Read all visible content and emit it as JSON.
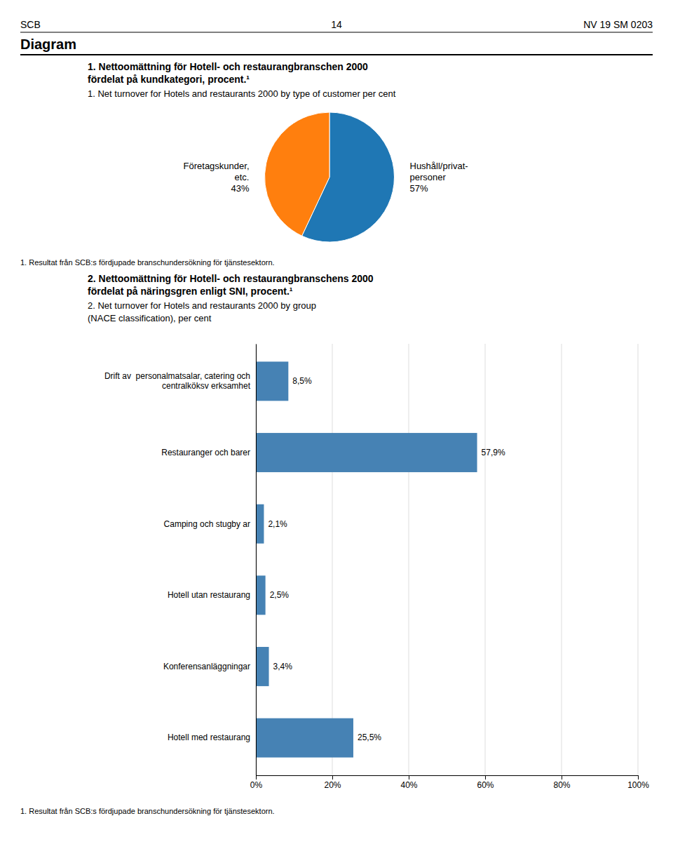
{
  "page_header": [
    "SCB",
    "14",
    "NV 19 SM 0203"
  ],
  "section_title": "Diagram",
  "chart_data": [
    {
      "type": "pie",
      "title": "1. Nettoomättning för Hotell- och restaurangbranschen 2000\nfördelat på kundkategori, procent.¹",
      "subtitle": "1. Net turnover for Hotels and restaurants 2000 by type of customer per cent",
      "categories": [
        "Hushåll/privat-\npersoner",
        "Företagskunder,\netc."
      ],
      "values": [
        57,
        43
      ],
      "value_labels": [
        "57%",
        "43%"
      ],
      "data_labels": true,
      "annotations": [
        "1. Resultat från SCB:s fördjupade branschundersökning för tjänstesektorn."
      ]
    },
    {
      "type": "bar",
      "orientation": "horizontal",
      "title": "2. Nettoomättning för Hotell- och restaurangbranschens 2000\nfördelat på näringsgren enligt SNI, procent.¹",
      "subtitle": "2. Net turnover for Hotels and restaurants 2000 by group\n(NACE classification), per cent",
      "categories": [
        "Drift av  personalmatsalar, catering och\ncentralköksv erksamhet",
        "Restauranger och barer",
        "Camping och stugby ar",
        "Hotell utan restaurang",
        "Konferensanläggningar",
        "Hotell med restaurang"
      ],
      "values": [
        8.5,
        57.9,
        2.1,
        2.5,
        3.4,
        25.5
      ],
      "value_labels": [
        "8,5%",
        "57,9%",
        "2,1%",
        "2,5%",
        "3,4%",
        "25,5%"
      ],
      "data_labels": true,
      "xlim": [
        0,
        100
      ],
      "xticks": [
        {
          "value": 0,
          "label": "0%"
        },
        {
          "value": 20,
          "label": "20%"
        },
        {
          "value": 40,
          "label": "40%"
        },
        {
          "value": 60,
          "label": "60%"
        },
        {
          "value": 80,
          "label": "80%"
        },
        {
          "value": 100,
          "label": "100%"
        }
      ],
      "grid": true,
      "annotations": [
        "1. Resultat från SCB:s fördjupade branschundersökning för tjänstesektorn."
      ]
    }
  ]
}
